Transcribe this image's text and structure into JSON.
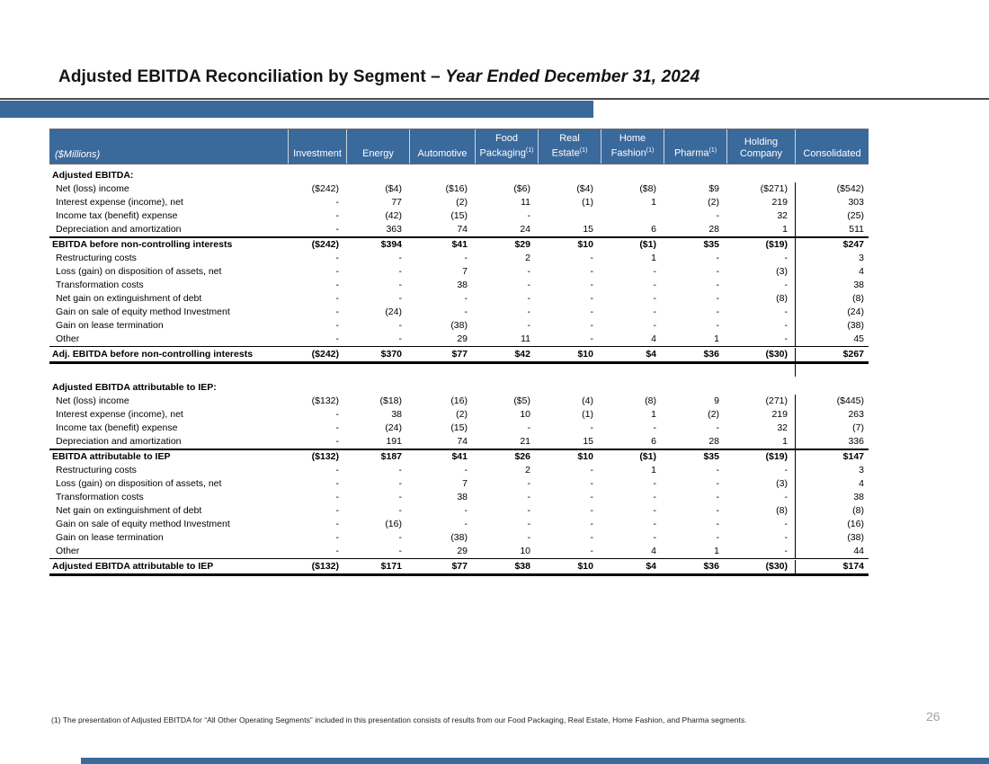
{
  "slide": {
    "title": {
      "main": "Adjusted EBITDA Reconciliation by Segment – ",
      "emphasis": "Year Ended December 31, 2024"
    },
    "accent_color": "#3A699C",
    "page_number": "26",
    "footnote": "(1) The presentation of Adjusted EBITDA for “All Other Operating Segments” included in this presentation consists of results from our Food Packaging, Real Estate, Home Fashion, and Pharma segments."
  },
  "table": {
    "unit_label": "($Millions)",
    "columns": [
      {
        "lines": [
          "Investment"
        ],
        "sup": ""
      },
      {
        "lines": [
          "Energy"
        ],
        "sup": ""
      },
      {
        "lines": [
          "Automotive"
        ],
        "sup": ""
      },
      {
        "lines": [
          "Food",
          "Packaging"
        ],
        "sup": "(1)"
      },
      {
        "lines": [
          "Real",
          "Estate"
        ],
        "sup": "(1)"
      },
      {
        "lines": [
          "Home",
          "Fashion"
        ],
        "sup": "(1)"
      },
      {
        "lines": [
          "Pharma"
        ],
        "sup": "(1)"
      },
      {
        "lines": [
          "Holding",
          "Company"
        ],
        "sup": ""
      },
      {
        "lines": [
          "Consolidated"
        ],
        "sup": ""
      }
    ],
    "rows": [
      {
        "style": "section",
        "label": "Adjusted EBITDA:",
        "values": [
          "",
          "",
          "",
          "",
          "",
          "",
          "",
          "",
          ""
        ]
      },
      {
        "style": "item",
        "label": "Net (loss) income",
        "values": [
          "($242)",
          "($4)",
          "($16)",
          "($6)",
          "($4)",
          "($8)",
          "$9",
          "($271)",
          "($542)"
        ]
      },
      {
        "style": "item",
        "label": "Interest expense (income), net",
        "values": [
          "-",
          "77",
          "(2)",
          "11",
          "(1)",
          "1",
          "(2)",
          "219",
          "303"
        ]
      },
      {
        "style": "item",
        "label": "Income tax (benefit) expense",
        "values": [
          "-",
          "(42)",
          "(15)",
          "-",
          "",
          "",
          "-",
          "32",
          "(25)"
        ]
      },
      {
        "style": "item",
        "label": "Depreciation and amortization",
        "values": [
          "-",
          "363",
          "74",
          "24",
          "15",
          "6",
          "28",
          "1",
          "511"
        ]
      },
      {
        "style": "subtotal",
        "label": "EBITDA before non-controlling interests",
        "values": [
          "($242)",
          "$394",
          "$41",
          "$29",
          "$10",
          "($1)",
          "$35",
          "($19)",
          "$247"
        ]
      },
      {
        "style": "item",
        "label": "Restructuring costs",
        "values": [
          "-",
          "-",
          "-",
          "2",
          "-",
          "1",
          "-",
          "-",
          "3"
        ]
      },
      {
        "style": "item",
        "label": "Loss (gain) on disposition of assets, net",
        "values": [
          "-",
          "-",
          "7",
          "-",
          "-",
          "-",
          "-",
          "(3)",
          "4"
        ]
      },
      {
        "style": "item",
        "label": "Transformation costs",
        "values": [
          "-",
          "-",
          "38",
          "-",
          "-",
          "-",
          "-",
          "-",
          "38"
        ]
      },
      {
        "style": "item",
        "label": "Net gain on extinguishment of debt",
        "values": [
          "-",
          "-",
          "-",
          "-",
          "-",
          "-",
          "-",
          "(8)",
          "(8)"
        ]
      },
      {
        "style": "item",
        "label": "Gain on sale of equity method Investment",
        "values": [
          "-",
          "(24)",
          "-",
          "-",
          "-",
          "-",
          "-",
          "-",
          "(24)"
        ]
      },
      {
        "style": "item",
        "label": "Gain on lease termination",
        "values": [
          "-",
          "-",
          "(38)",
          "-",
          "-",
          "-",
          "-",
          "-",
          "(38)"
        ]
      },
      {
        "style": "item",
        "label": "Other",
        "values": [
          "-",
          "-",
          "29",
          "11",
          "-",
          "4",
          "1",
          "-",
          "45"
        ]
      },
      {
        "style": "total",
        "label": "Adj. EBITDA before non-controlling interests",
        "values": [
          "($242)",
          "$370",
          "$77",
          "$42",
          "$10",
          "$4",
          "$36",
          "($30)",
          "$267"
        ]
      },
      {
        "style": "gap",
        "label": "",
        "values": [
          "",
          "",
          "",
          "",
          "",
          "",
          "",
          "",
          ""
        ]
      },
      {
        "style": "section",
        "label": "Adjusted EBITDA attributable to IEP:",
        "values": [
          "",
          "",
          "",
          "",
          "",
          "",
          "",
          "",
          ""
        ]
      },
      {
        "style": "item",
        "label": "Net (loss) income",
        "values": [
          "($132)",
          "($18)",
          "(16)",
          "($5)",
          "(4)",
          "(8)",
          "9",
          "(271)",
          "($445)"
        ]
      },
      {
        "style": "item",
        "label": "Interest expense (income), net",
        "values": [
          "-",
          "38",
          "(2)",
          "10",
          "(1)",
          "1",
          "(2)",
          "219",
          "263"
        ]
      },
      {
        "style": "item",
        "label": "Income tax (benefit) expense",
        "values": [
          "-",
          "(24)",
          "(15)",
          "-",
          "-",
          "-",
          "-",
          "32",
          "(7)"
        ]
      },
      {
        "style": "item",
        "label": "Depreciation and amortization",
        "values": [
          "-",
          "191",
          "74",
          "21",
          "15",
          "6",
          "28",
          "1",
          "336"
        ]
      },
      {
        "style": "subtotal",
        "label": "EBITDA attributable to IEP",
        "values": [
          "($132)",
          "$187",
          "$41",
          "$26",
          "$10",
          "($1)",
          "$35",
          "($19)",
          "$147"
        ]
      },
      {
        "style": "item",
        "label": "Restructuring costs",
        "values": [
          "-",
          "-",
          "-",
          "2",
          "-",
          "1",
          "-",
          "-",
          "3"
        ]
      },
      {
        "style": "item",
        "label": "Loss (gain) on disposition of assets, net",
        "values": [
          "-",
          "-",
          "7",
          "-",
          "-",
          "-",
          "-",
          "(3)",
          "4"
        ]
      },
      {
        "style": "item",
        "label": "Transformation costs",
        "values": [
          "-",
          "-",
          "38",
          "-",
          "-",
          "-",
          "-",
          "-",
          "38"
        ]
      },
      {
        "style": "item",
        "label": "Net gain on extinguishment of debt",
        "values": [
          "-",
          "-",
          "-",
          "-",
          "-",
          "-",
          "-",
          "(8)",
          "(8)"
        ]
      },
      {
        "style": "item",
        "label": "Gain on sale of equity method Investment",
        "values": [
          "-",
          "(16)",
          "-",
          "-",
          "-",
          "-",
          "-",
          "-",
          "(16)"
        ]
      },
      {
        "style": "item",
        "label": "Gain on lease termination",
        "values": [
          "-",
          "-",
          "(38)",
          "-",
          "-",
          "-",
          "-",
          "-",
          "(38)"
        ]
      },
      {
        "style": "item",
        "label": "Other",
        "values": [
          "-",
          "-",
          "29",
          "10",
          "-",
          "4",
          "1",
          "-",
          "44"
        ]
      },
      {
        "style": "total",
        "label": "Adjusted EBITDA attributable to IEP",
        "values": [
          "($132)",
          "$171",
          "$77",
          "$38",
          "$10",
          "$4",
          "$36",
          "($30)",
          "$174"
        ]
      }
    ]
  }
}
